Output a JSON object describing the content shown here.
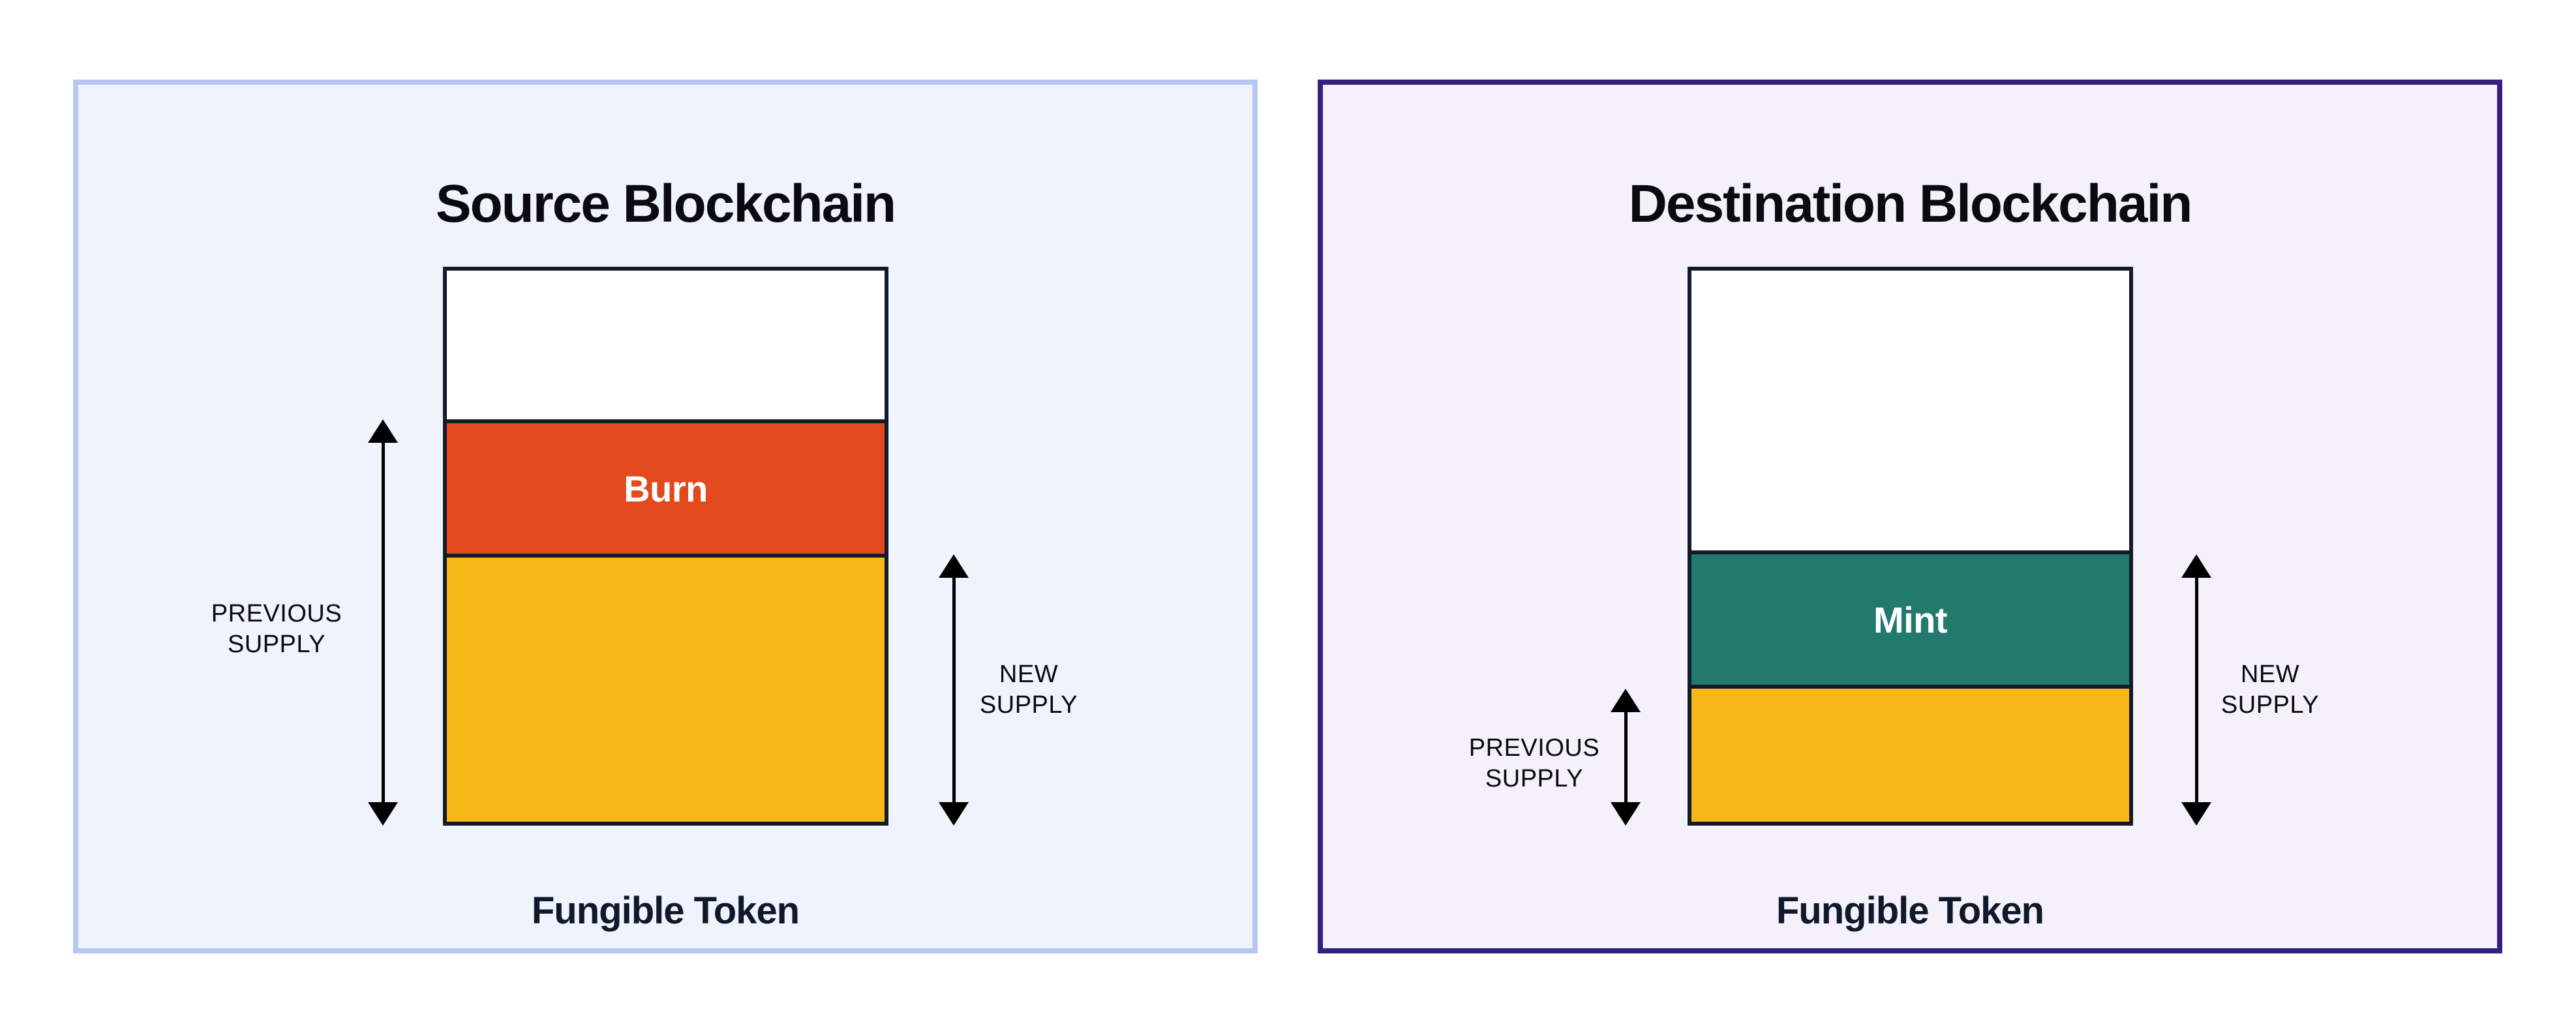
{
  "panels": [
    {
      "title": "Source Blockchain",
      "caption": "Fungible Token",
      "bar": {
        "segments": [
          {
            "name": "headroom",
            "label": "",
            "color": "#ffffff",
            "height_pct": 27.0
          },
          {
            "name": "burn",
            "label": "Burn",
            "color": "#e2491d",
            "height_pct": 24.4
          },
          {
            "name": "token-supply",
            "label": "",
            "color": "#f5b817",
            "height_pct": 48.6
          }
        ]
      },
      "previous_supply": {
        "lines": [
          "PREVIOUS",
          "SUPPLY"
        ]
      },
      "new_supply": {
        "lines": [
          "NEW",
          "SUPPLY"
        ]
      }
    },
    {
      "title": "Destination Blockchain",
      "caption": "Fungible Token",
      "bar": {
        "segments": [
          {
            "name": "headroom",
            "label": "",
            "color": "#ffffff",
            "height_pct": 50.8
          },
          {
            "name": "mint",
            "label": "Mint",
            "color": "#217a6c",
            "height_pct": 24.4
          },
          {
            "name": "token-supply",
            "label": "",
            "color": "#f5b817",
            "height_pct": 24.8
          }
        ]
      },
      "previous_supply": {
        "lines": [
          "PREVIOUS",
          "SUPPLY"
        ]
      },
      "new_supply": {
        "lines": [
          "NEW",
          "SUPPLY"
        ]
      }
    }
  ],
  "colors": {
    "source_panel_bg": "#eff3fc",
    "source_panel_border": "#b7c7f1",
    "dest_panel_bg": "#f4f1fb",
    "dest_panel_border": "#35217d",
    "bar_border": "#131a2c",
    "burn": "#e2491d",
    "mint": "#217a6c",
    "supply_yellow": "#f5b817",
    "arrow": "#000000",
    "text": "#0a0a10"
  }
}
